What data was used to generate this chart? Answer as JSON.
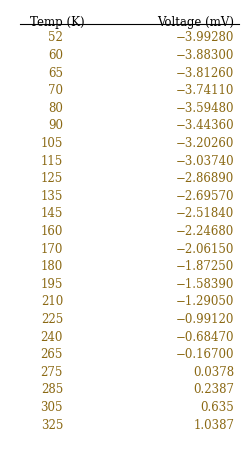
{
  "header": [
    "Temp (K)",
    "Voltage (mV)"
  ],
  "temperatures": [
    52,
    60,
    65,
    70,
    80,
    90,
    105,
    115,
    125,
    135,
    145,
    160,
    170,
    180,
    195,
    210,
    225,
    240,
    265,
    275,
    285,
    305,
    325
  ],
  "voltages": [
    "−3.99280",
    "−3.88300",
    "−3.81260",
    "−3.74110",
    "−3.59480",
    "−3.44360",
    "−3.20260",
    "−3.03740",
    "−2.86890",
    "−2.69570",
    "−2.51840",
    "−2.24680",
    "−2.06150",
    "−1.87250",
    "−1.58390",
    "−1.29050",
    "−0.99120",
    "−0.68470",
    "−0.16700",
    "0.0378",
    "0.2387",
    "0.635",
    "1.0387"
  ],
  "data_color": "#8B6914",
  "header_color": "#000000",
  "background_color": "#FFFFFF",
  "figsize": [
    2.52,
    4.63
  ],
  "dpi": 100,
  "font_size": 8.5,
  "header_font_size": 8.5
}
